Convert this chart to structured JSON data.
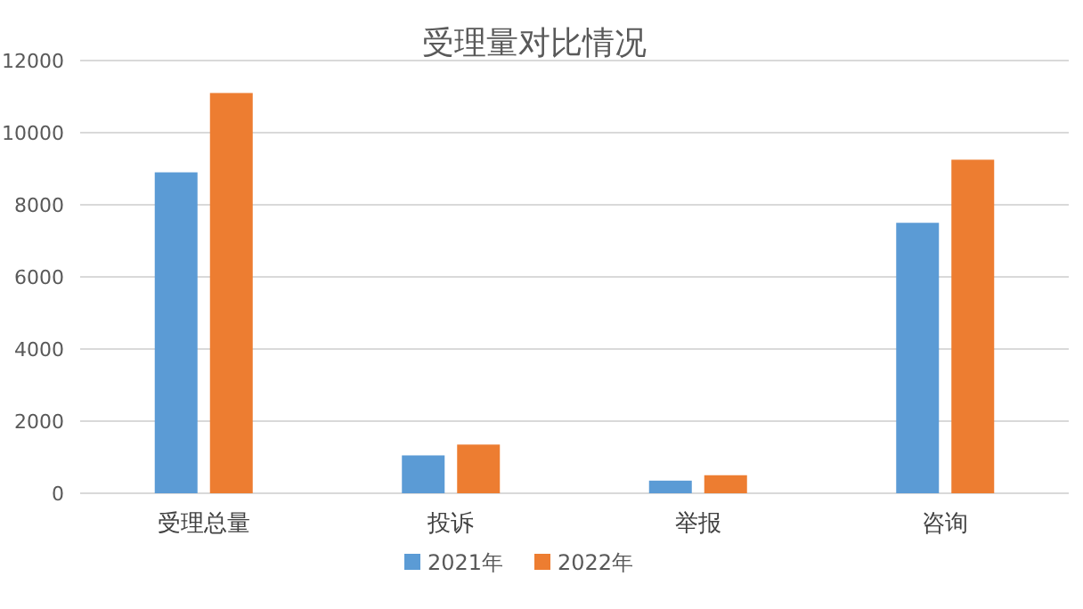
{
  "chart_data": {
    "type": "bar",
    "title": "受理量对比情况",
    "categories": [
      "受理总量",
      "投诉",
      "举报",
      "咨询"
    ],
    "series": [
      {
        "name": "2021年",
        "color": "#5b9bd5",
        "values": [
          8900,
          1050,
          350,
          7500
        ]
      },
      {
        "name": "2022年",
        "color": "#ed7d31",
        "values": [
          11100,
          1350,
          500,
          9250
        ]
      }
    ],
    "ylim": [
      0,
      12000
    ],
    "yticks": [
      0,
      2000,
      4000,
      6000,
      8000,
      10000,
      12000
    ],
    "grid": "y",
    "legend": "bottom"
  }
}
